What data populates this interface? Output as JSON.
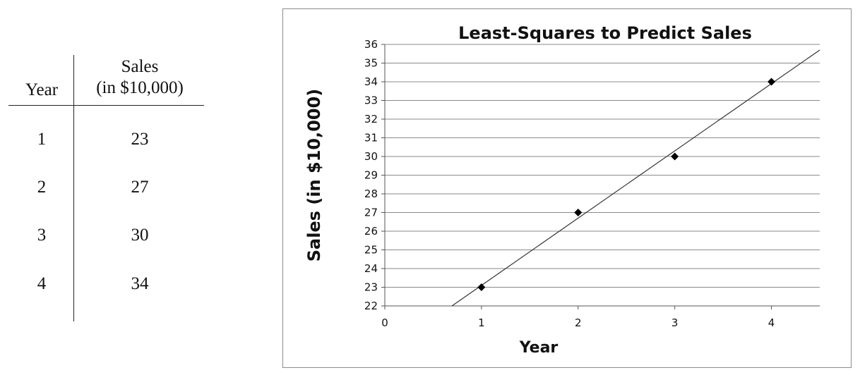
{
  "table": {
    "header": {
      "year": "Year",
      "sales_line1": "Sales",
      "sales_line2": "(in $10,000)"
    },
    "rows": [
      {
        "year": "1",
        "sales": "23"
      },
      {
        "year": "2",
        "sales": "27"
      },
      {
        "year": "3",
        "sales": "30"
      },
      {
        "year": "4",
        "sales": "34"
      }
    ]
  },
  "chart_data": {
    "type": "scatter",
    "title": "Least-Squares to Predict Sales",
    "xlabel": "Year",
    "ylabel": "Sales (in $10,000)",
    "xlim": [
      0,
      4.5
    ],
    "ylim": [
      22,
      36
    ],
    "x_ticks": [
      "0",
      "1",
      "2",
      "3",
      "4"
    ],
    "y_ticks": [
      "22",
      "23",
      "24",
      "25",
      "26",
      "27",
      "28",
      "29",
      "30",
      "31",
      "32",
      "33",
      "34",
      "35",
      "36"
    ],
    "grid": true,
    "legend": "none",
    "series": [
      {
        "x": [
          1,
          2,
          3,
          4
        ],
        "y": [
          23,
          27,
          30,
          34
        ],
        "marker": "diamond"
      }
    ],
    "trendline": {
      "type": "least-squares",
      "slope": 3.6,
      "intercept": 19.5
    },
    "colors": {
      "marker": "#000000",
      "line": "#333333",
      "grid": "#8a8a8a"
    }
  }
}
